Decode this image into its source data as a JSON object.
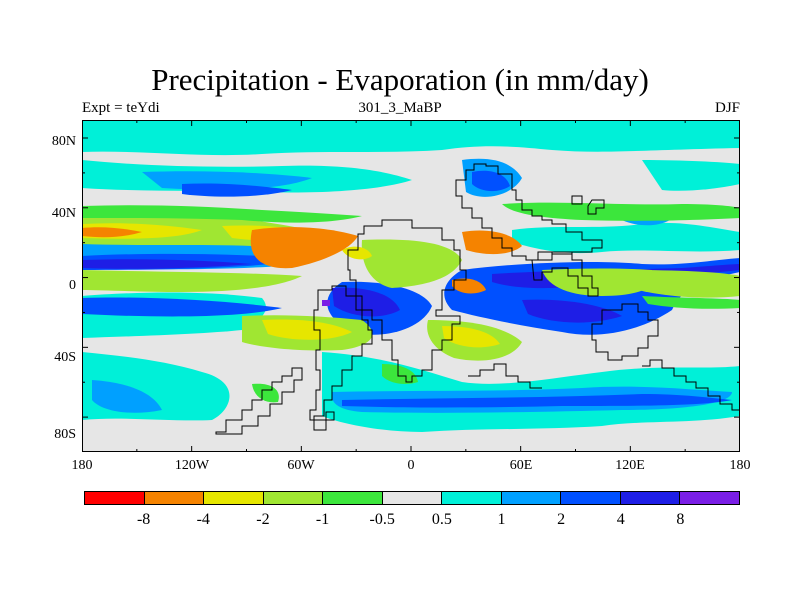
{
  "title": "Precipitation - Evaporation (in mm/day)",
  "subtitle_left": "Expt = teYdi",
  "subtitle_center": "301_3_MaBP",
  "subtitle_right": "DJF",
  "y_ticks": [
    "80N",
    "40N",
    "0",
    "40S",
    "80S"
  ],
  "x_ticks": [
    "180",
    "120W",
    "60W",
    "0",
    "60E",
    "120E",
    "180"
  ],
  "colorbar": {
    "colors": [
      "#ff0000",
      "#f58300",
      "#e6e600",
      "#a0e632",
      "#3ce63c",
      "#e6e6e6",
      "#00f0d8",
      "#00a0ff",
      "#0050ff",
      "#1e1ee6",
      "#7a1ee6"
    ],
    "labels": [
      "-8",
      "-4",
      "-2",
      "-1",
      "-0.5",
      "0.5",
      "1",
      "2",
      "4",
      "8"
    ]
  },
  "map": {
    "background_color": "#e6e6e6",
    "coastline_color": "#000000"
  }
}
